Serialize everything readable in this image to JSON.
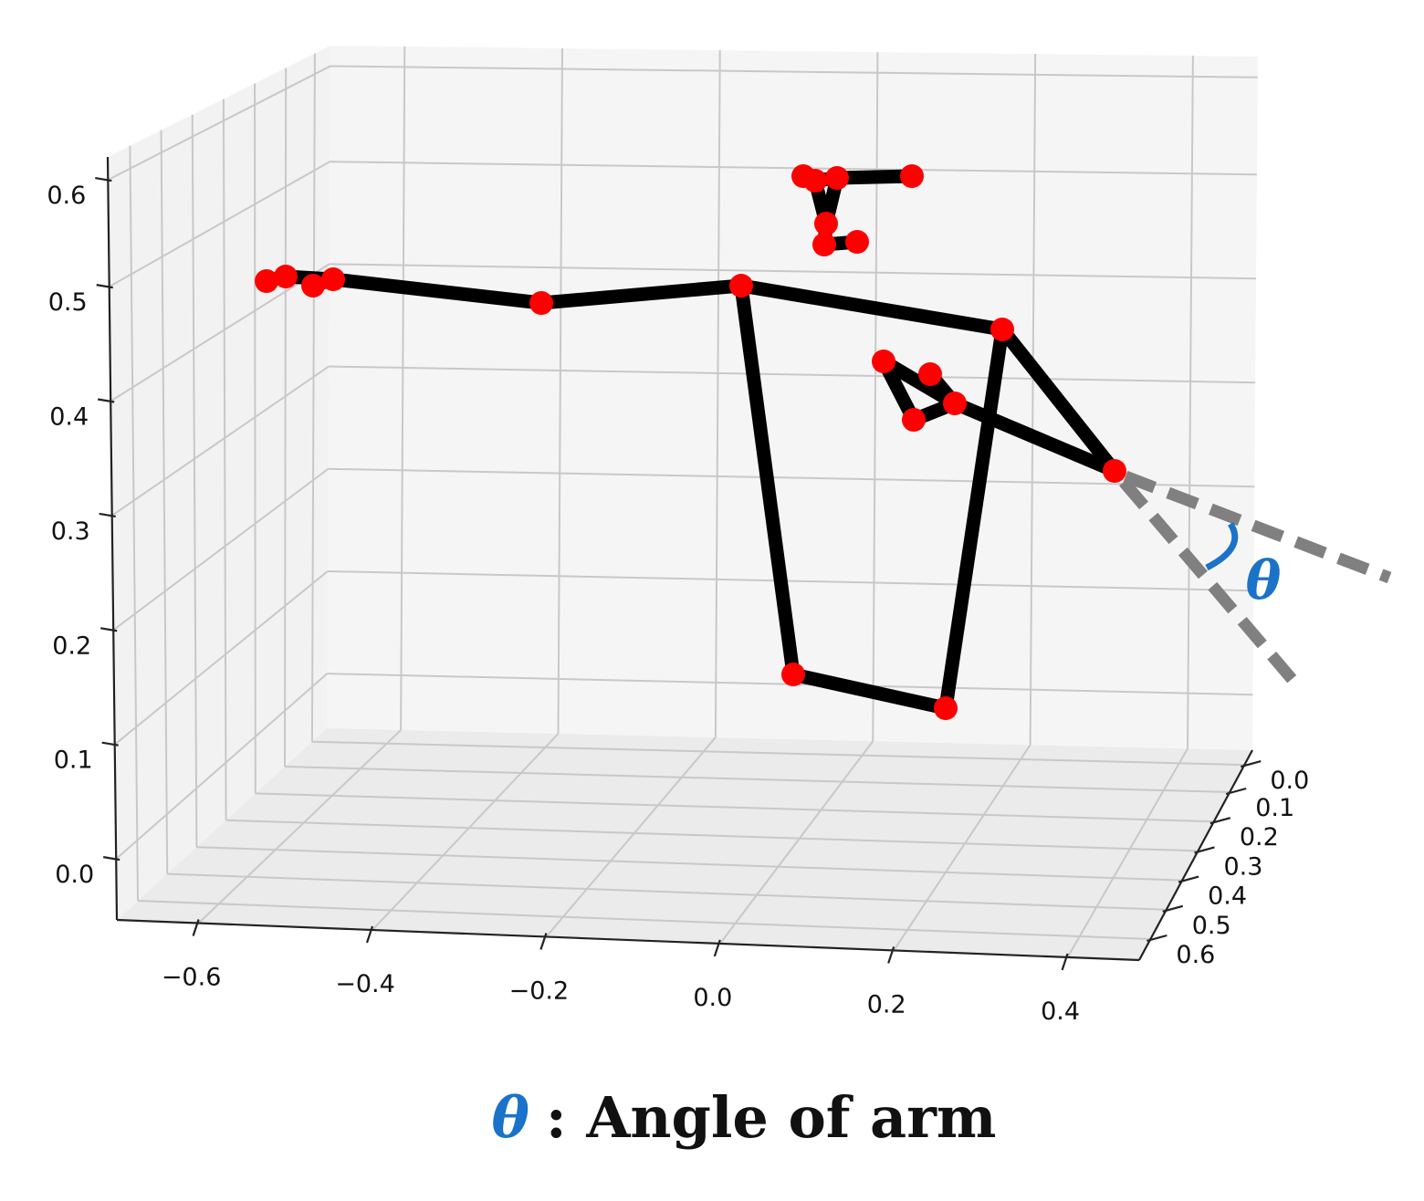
{
  "chart_data": {
    "type": "3d-skeleton",
    "x_ticks": [
      "−0.6",
      "−0.4",
      "−0.2",
      "0.0",
      "0.2",
      "0.4"
    ],
    "y_ticks": [
      "0.0",
      "0.1",
      "0.2",
      "0.3",
      "0.4",
      "0.5",
      "0.6"
    ],
    "z_ticks": [
      "0.0",
      "0.1",
      "0.2",
      "0.3",
      "0.4",
      "0.5",
      "0.6"
    ],
    "grid": true,
    "joint_color": "#ff0000",
    "bone_color": "#000000",
    "guide_color": "#808080",
    "angle_color": "#1a73c8",
    "angle_symbol": "θ",
    "caption_text": ": Angle of arm"
  }
}
